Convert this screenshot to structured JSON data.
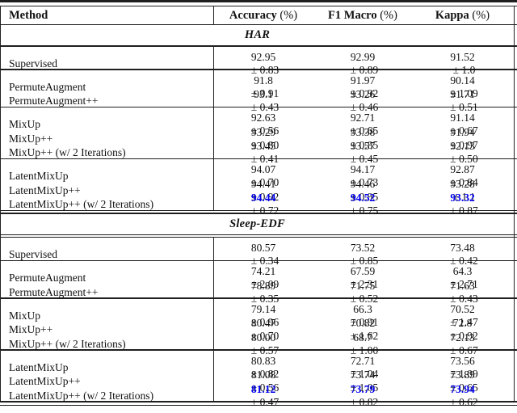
{
  "page": {
    "background": "#ffffff",
    "highlight_color": "#0000ee",
    "rule_color": "#1f1f1f"
  },
  "header": {
    "method_label": "Method",
    "cols": [
      {
        "bold": "Accuracy",
        "suffix": " (%)"
      },
      {
        "bold": "F1 Macro",
        "suffix": " (%)"
      },
      {
        "bold": "Kappa",
        "suffix": " (%)"
      }
    ]
  },
  "sections": [
    {
      "title": "HAR",
      "groups": [
        {
          "rows": [
            {
              "method": "Supervised",
              "highlight": false,
              "cells": [
                {
                  "mean": "92.95",
                  "pm": "± 0.83"
                },
                {
                  "mean": "92.99",
                  "pm": "± 0.89"
                },
                {
                  "mean": "91.52",
                  "pm": "± 1.0"
                }
              ]
            }
          ]
        },
        {
          "rows": [
            {
              "method": "PermuteAugment",
              "highlight": false,
              "cells": [
                {
                  "mean": "91.8",
                  "pm": "± 0.91"
                },
                {
                  "mean": "91.97",
                  "pm": "± 0.92"
                },
                {
                  "mean": "90.14",
                  "pm": "± 1.09"
                }
              ]
            },
            {
              "method": "PermuteAugment++",
              "highlight": false,
              "cells": [
                {
                  "mean": "93.1",
                  "pm": "± 0.43"
                },
                {
                  "mean": "93.26",
                  "pm": "± 0.46"
                },
                {
                  "mean": "91.71",
                  "pm": "± 0.51"
                }
              ]
            }
          ]
        },
        {
          "rows": [
            {
              "method": "MixUp",
              "highlight": false,
              "cells": [
                {
                  "mean": "92.63",
                  "pm": "± 0.56"
                },
                {
                  "mean": "92.71",
                  "pm": "± 0.65"
                },
                {
                  "mean": "91.14",
                  "pm": "± 0.67"
                }
              ]
            },
            {
              "method": "MixUp++",
              "highlight": false,
              "cells": [
                {
                  "mean": "93.29",
                  "pm": "± 0.80"
                },
                {
                  "mean": "93.38",
                  "pm": "± 0.85"
                },
                {
                  "mean": "91.94",
                  "pm": "± 0.97"
                }
              ]
            },
            {
              "method": "MixUp++ (w/ 2 Iterations)",
              "highlight": false,
              "cells": [
                {
                  "mean": "93.45",
                  "pm": "± 0.41"
                },
                {
                  "mean": "93.57",
                  "pm": "± 0.45"
                },
                {
                  "mean": "92.13",
                  "pm": "± 0.50"
                }
              ]
            }
          ]
        },
        {
          "rows": [
            {
              "method": "LatentMixUp",
              "highlight": false,
              "cells": [
                {
                  "mean": "94.07",
                  "pm": "± 0.70"
                },
                {
                  "mean": "94.17",
                  "pm": "± 0.73"
                },
                {
                  "mean": "92.87",
                  "pm": "± 0.84"
                }
              ]
            },
            {
              "method": "LatentMixUp++",
              "highlight": false,
              "cells": [
                {
                  "mean": "94.41",
                  "pm": "± 0.92"
                },
                {
                  "mean": "94.46",
                  "pm": "± 0.95"
                },
                {
                  "mean": "93.28",
                  "pm": "± 1.1"
                }
              ]
            },
            {
              "method": "LatentMixUp++  (w/ 2 Iterations)",
              "highlight": true,
              "cells": [
                {
                  "mean": "94.44",
                  "pm": "± 0.72"
                },
                {
                  "mean": "94.52",
                  "pm": "± 0.75"
                },
                {
                  "mean": "93.32",
                  "pm": "± 0.87"
                }
              ]
            }
          ]
        }
      ]
    },
    {
      "title": "Sleep-EDF",
      "groups": [
        {
          "rows": [
            {
              "method": "Supervised",
              "highlight": false,
              "cells": [
                {
                  "mean": "80.57",
                  "pm": "± 0.34"
                },
                {
                  "mean": "73.52",
                  "pm": "± 0.85"
                },
                {
                  "mean": "73.48",
                  "pm": "± 0.42"
                }
              ]
            }
          ]
        },
        {
          "rows": [
            {
              "method": "PermuteAugment",
              "highlight": false,
              "cells": [
                {
                  "mean": "74.21",
                  "pm": "± 2.09"
                },
                {
                  "mean": "67.59",
                  "pm": "± 2.31"
                },
                {
                  "mean": "64.3",
                  "pm": "± 2.71"
                }
              ]
            },
            {
              "method": "PermuteAugment++",
              "highlight": false,
              "cells": [
                {
                  "mean": "78.89",
                  "pm": "± 0.35"
                },
                {
                  "mean": "71.75",
                  "pm": "± 0.52"
                },
                {
                  "mean": "71.63",
                  "pm": "± 0.43"
                }
              ]
            }
          ]
        },
        {
          "rows": [
            {
              "method": "MixUp",
              "highlight": false,
              "cells": [
                {
                  "mean": "79.14",
                  "pm": "± 0.96"
                },
                {
                  "mean": "66.3",
                  "pm": "± 0.91"
                },
                {
                  "mean": "70.52",
                  "pm": "± 1.47"
                }
              ]
            },
            {
              "method": "MixUp++",
              "highlight": false,
              "cells": [
                {
                  "mean": "80.47",
                  "pm": "± 0.70"
                },
                {
                  "mean": "70.82",
                  "pm": "± 1.62"
                },
                {
                  "mean": "72.8",
                  "pm": "± 0.92"
                }
              ]
            },
            {
              "method": "MixUp++  (w/ 2 Iterations)",
              "highlight": false,
              "cells": [
                {
                  "mean": "80.00",
                  "pm": "± 0.57"
                },
                {
                  "mean": "68.7",
                  "pm": "± 1.00"
                },
                {
                  "mean": "72.13",
                  "pm": "± 0.67"
                }
              ]
            }
          ]
        },
        {
          "rows": [
            {
              "method": "LatentMixUp",
              "highlight": false,
              "cells": [
                {
                  "mean": "80.83",
                  "pm": "± 0.82"
                },
                {
                  "mean": "72.71",
                  "pm": "± 1.04"
                },
                {
                  "mean": "73.56",
                  "pm": "± 1.09"
                }
              ]
            },
            {
              "method": "LatentMixUp++",
              "highlight": false,
              "cells": [
                {
                  "mean": "81.08",
                  "pm": "± 0.56"
                },
                {
                  "mean": "73.74",
                  "pm": "± 1.05"
                },
                {
                  "mean": "73.89",
                  "pm": "± 0.65"
                }
              ]
            },
            {
              "method": "LatentMixUp++ (w/ 2 Iterations)",
              "highlight": true,
              "cells": [
                {
                  "mean": "81.12",
                  "pm": "± 0.47"
                },
                {
                  "mean": "73.79",
                  "pm": "± 0.82"
                },
                {
                  "mean": "73.94",
                  "pm": "± 0.62"
                }
              ]
            }
          ]
        }
      ]
    }
  ]
}
